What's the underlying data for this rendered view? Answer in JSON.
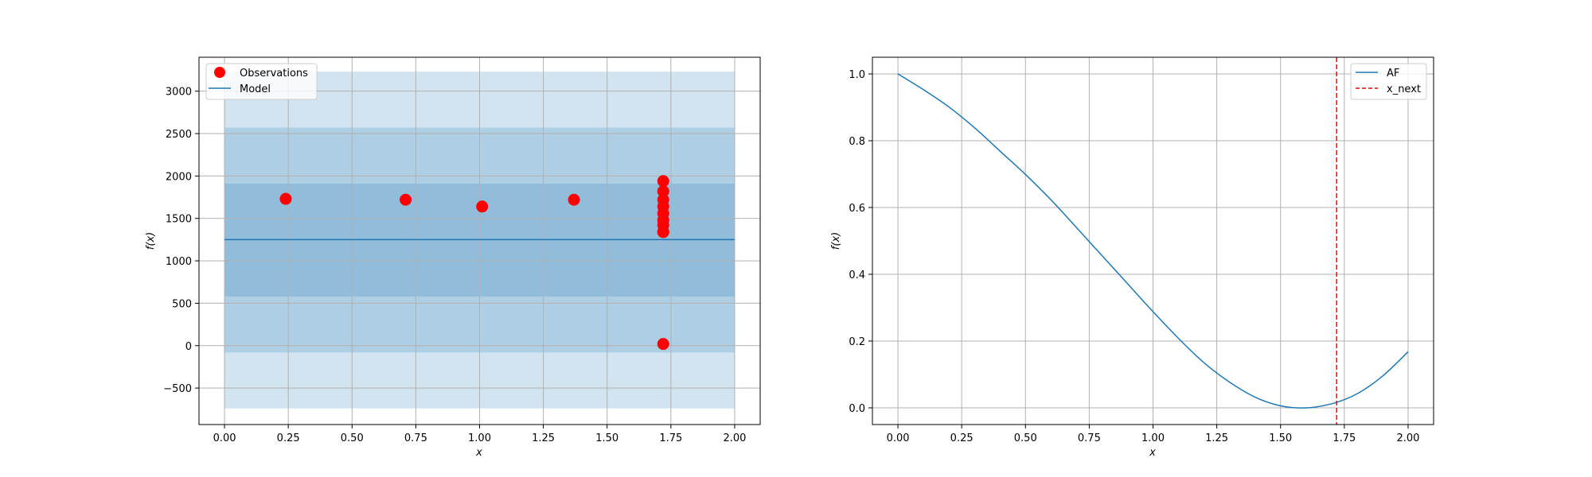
{
  "chart_data": [
    {
      "type": "scatter",
      "title": "",
      "xlabel": "x",
      "ylabel": "f(x)",
      "xlim": [
        -0.1,
        2.1
      ],
      "ylim": [
        -930,
        3400
      ],
      "xticks": [
        0.0,
        0.25,
        0.5,
        0.75,
        1.0,
        1.25,
        1.5,
        1.75,
        2.0
      ],
      "xtick_labels": [
        "0.00",
        "0.25",
        "0.50",
        "0.75",
        "1.00",
        "1.25",
        "1.50",
        "1.75",
        "2.00"
      ],
      "yticks": [
        -500,
        0,
        500,
        1000,
        1500,
        2000,
        2500,
        3000
      ],
      "ytick_labels": [
        "−500",
        "0",
        "500",
        "1000",
        "1500",
        "2000",
        "2500",
        "3000"
      ],
      "grid": true,
      "legend_position": "top-left",
      "legend": [
        "Observations",
        "Model"
      ],
      "observations": {
        "name": "Observations",
        "color": "#ff0000",
        "x": [
          0.24,
          0.71,
          1.01,
          1.37,
          1.72,
          1.72,
          1.72,
          1.72,
          1.72,
          1.72,
          1.72,
          1.72,
          1.72,
          1.72
        ],
        "y": [
          1730,
          1720,
          1640,
          1720,
          1940,
          1820,
          1720,
          1640,
          1560,
          1480,
          1420,
          1340,
          1340,
          20
        ]
      },
      "model": {
        "name": "Model",
        "color": "#1f77b4",
        "x": [
          0.0,
          2.0
        ],
        "mean": 1250,
        "bands": [
          {
            "label": "±1σ",
            "lower": 580,
            "upper": 1910
          },
          {
            "label": "±2σ",
            "lower": -80,
            "upper": 2570
          },
          {
            "label": "±3σ",
            "lower": -740,
            "upper": 3230
          }
        ]
      }
    },
    {
      "type": "line",
      "title": "",
      "xlabel": "x",
      "ylabel": "f(x)",
      "xlim": [
        -0.1,
        2.1
      ],
      "ylim": [
        -0.05,
        1.05
      ],
      "xticks": [
        0.0,
        0.25,
        0.5,
        0.75,
        1.0,
        1.25,
        1.5,
        1.75,
        2.0
      ],
      "xtick_labels": [
        "0.00",
        "0.25",
        "0.50",
        "0.75",
        "1.00",
        "1.25",
        "1.50",
        "1.75",
        "2.00"
      ],
      "yticks": [
        0.0,
        0.2,
        0.4,
        0.6,
        0.8,
        1.0
      ],
      "ytick_labels": [
        "0.0",
        "0.2",
        "0.4",
        "0.6",
        "0.8",
        "1.0"
      ],
      "grid": true,
      "legend_position": "top-right",
      "legend": [
        "AF",
        "x_next"
      ],
      "series": [
        {
          "name": "AF",
          "color": "#1f77b4",
          "x": [
            0.0,
            0.1,
            0.2,
            0.3,
            0.4,
            0.5,
            0.6,
            0.7,
            0.8,
            0.9,
            1.0,
            1.1,
            1.2,
            1.3,
            1.4,
            1.5,
            1.6,
            1.7,
            1.8,
            1.9,
            2.0
          ],
          "y": [
            1.0,
            0.953,
            0.901,
            0.839,
            0.769,
            0.699,
            0.623,
            0.54,
            0.456,
            0.372,
            0.288,
            0.208,
            0.135,
            0.077,
            0.032,
            0.006,
            0.0,
            0.012,
            0.042,
            0.095,
            0.168
          ]
        }
      ],
      "vline": {
        "name": "x_next",
        "x": 1.72,
        "color": "#ff0000",
        "style": "dashed"
      }
    }
  ]
}
